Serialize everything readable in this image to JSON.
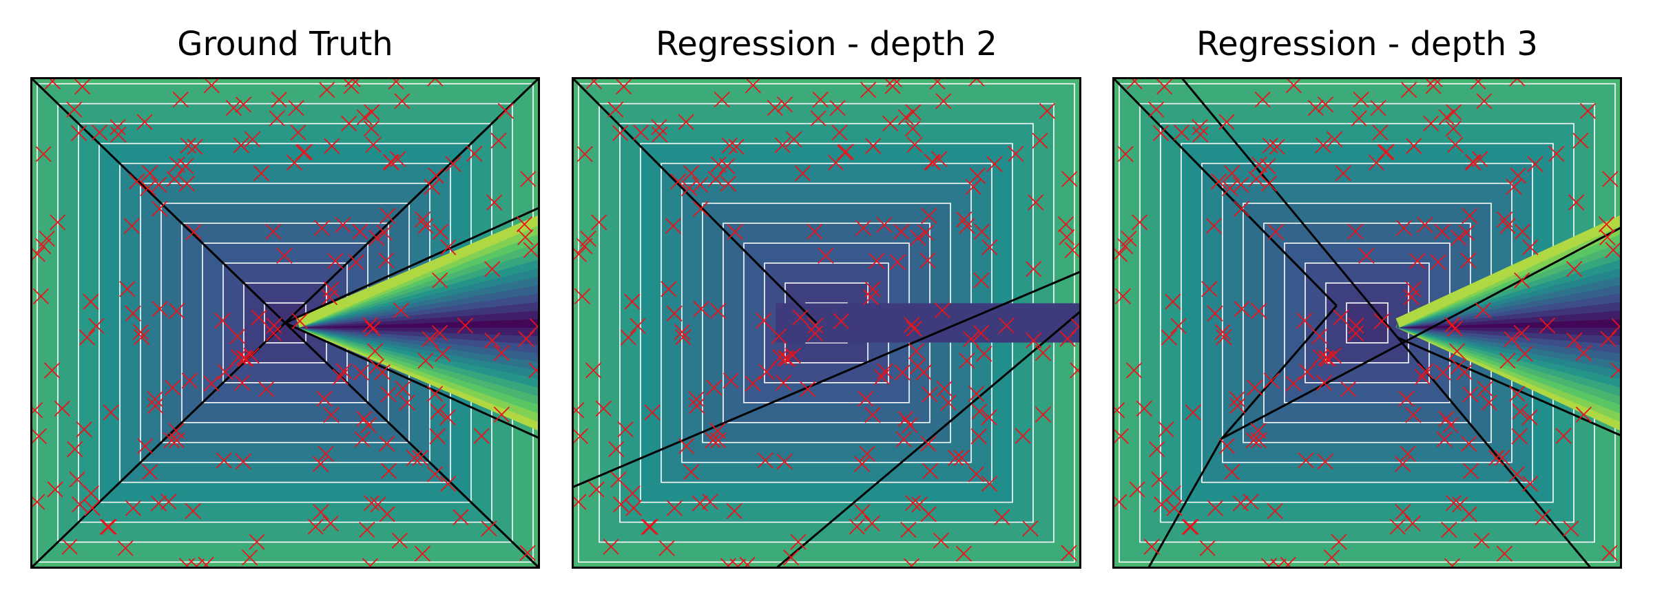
{
  "colors": {
    "background": "#ffffff",
    "marker": "#e8141c",
    "boundary": "#000000",
    "contour": "#ffffff",
    "colormap": [
      "#440154",
      "#3b528b",
      "#21918c",
      "#5ec962",
      "#fde725"
    ]
  },
  "chart_data": [
    {
      "type": "heatmap",
      "title": "Ground Truth",
      "xlim": [
        -1,
        1
      ],
      "ylim": [
        -1,
        1
      ],
      "axes_ticks": false,
      "grid": false,
      "colormap": "viridis",
      "marker": "x",
      "boundaries": [
        [
          [
            -1,
            1
          ],
          [
            1,
            -1
          ]
        ],
        [
          [
            -1,
            -1
          ],
          [
            1,
            1
          ]
        ],
        [
          [
            0,
            0
          ],
          [
            1,
            0.47
          ]
        ],
        [
          [
            0,
            0
          ],
          [
            1,
            -0.47
          ]
        ]
      ]
    },
    {
      "type": "heatmap",
      "title": "Regression - depth 2",
      "xlim": [
        -1,
        1
      ],
      "ylim": [
        -1,
        1
      ],
      "axes_ticks": false,
      "grid": false,
      "colormap": "viridis",
      "marker": "x",
      "boundaries": [
        [
          [
            -1,
            1
          ],
          [
            -0.04,
            0.0
          ]
        ],
        [
          [
            -1,
            -0.67
          ],
          [
            1,
            0.21
          ]
        ],
        [
          [
            -0.2,
            -1
          ],
          [
            1,
            0.05
          ]
        ]
      ]
    },
    {
      "type": "heatmap",
      "title": "Regression - depth 3",
      "xlim": [
        -1,
        1
      ],
      "ylim": [
        -1,
        1
      ],
      "axes_ticks": false,
      "grid": false,
      "colormap": "viridis",
      "marker": "x",
      "boundaries": [
        [
          [
            -1,
            1
          ],
          [
            -0.12,
            0.07
          ]
        ],
        [
          [
            -0.73,
            1
          ],
          [
            0.12,
            -0.06
          ]
        ],
        [
          [
            -0.12,
            0.07
          ],
          [
            -0.57,
            -0.47
          ]
        ],
        [
          [
            -0.57,
            -0.47
          ],
          [
            1,
            0.39
          ]
        ],
        [
          [
            0.12,
            -0.06
          ],
          [
            1,
            -0.46
          ]
        ],
        [
          [
            0.12,
            -0.06
          ],
          [
            0.88,
            -1
          ]
        ],
        [
          [
            -0.57,
            -0.47
          ],
          [
            -0.86,
            -1
          ]
        ]
      ]
    }
  ]
}
